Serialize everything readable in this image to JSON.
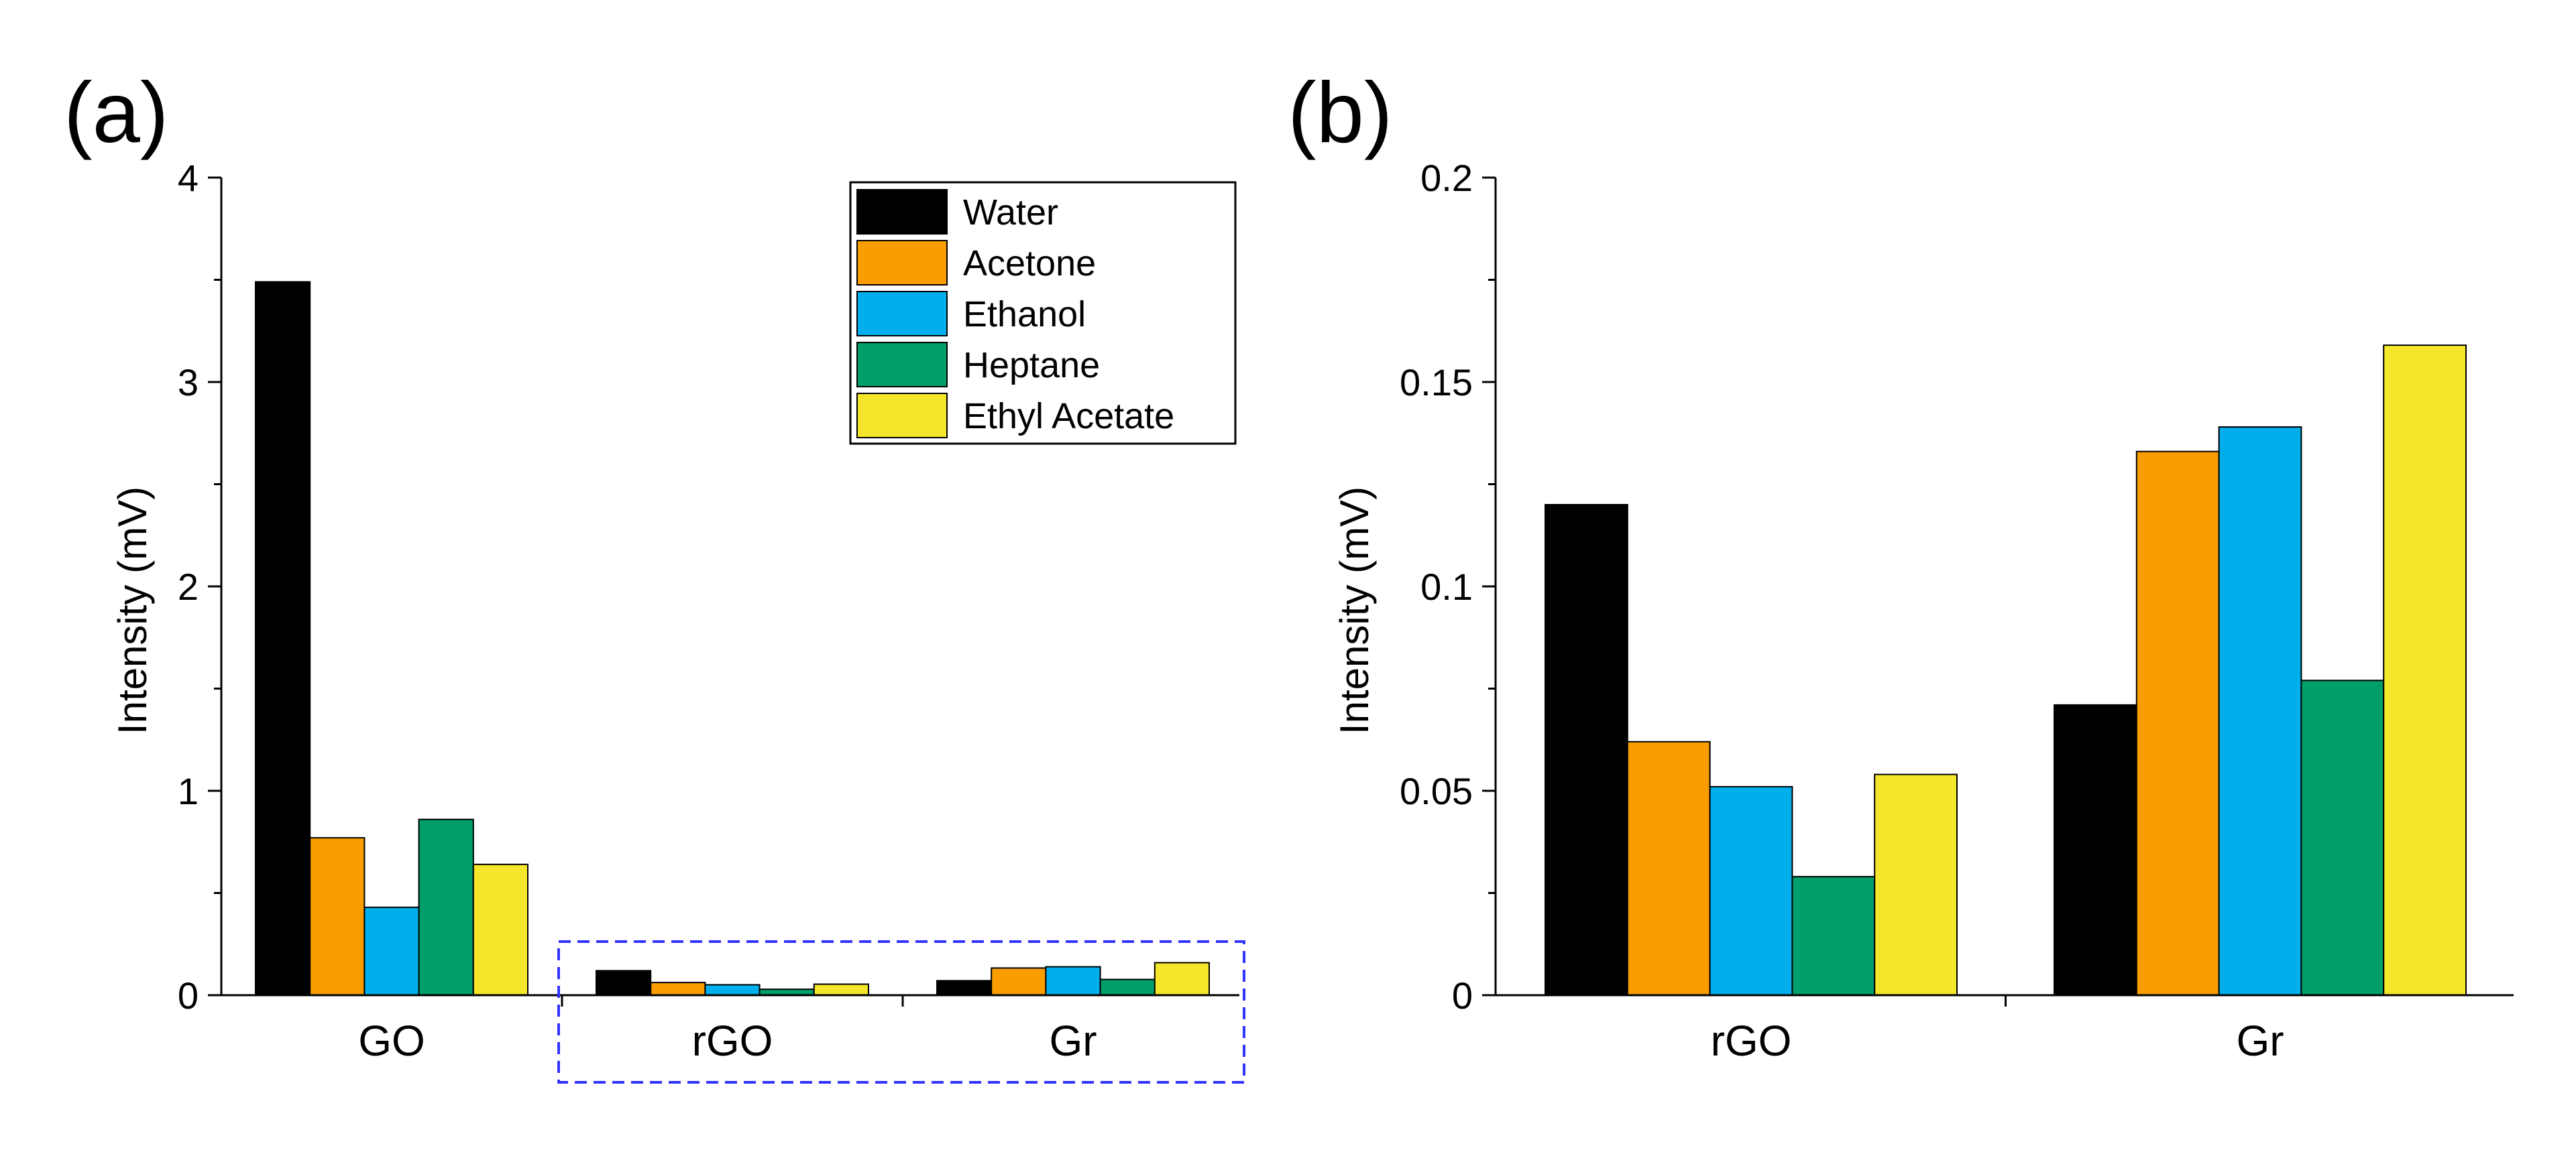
{
  "figure": {
    "panel_labels": [
      "(a)",
      "(b)"
    ]
  },
  "legend": {
    "entries": [
      {
        "label": "Water",
        "color": "#000000"
      },
      {
        "label": "Acetone",
        "color": "#F99D00"
      },
      {
        "label": "Ethanol",
        "color": "#00AEEB"
      },
      {
        "label": "Heptane",
        "color": "#009E6B"
      },
      {
        "label": "Ethyl Acetate",
        "color": "#F4E62A"
      }
    ],
    "placement": "top-right of panel (a)"
  },
  "highlight_box": {
    "color": "#3333FF",
    "style": "dashed",
    "encloses": [
      "rGO",
      "Gr"
    ]
  },
  "chart_data": [
    {
      "type": "bar",
      "panel": "(a)",
      "title": "",
      "xlabel": "",
      "ylabel": "Intensity (mV)",
      "ylim": [
        0,
        4
      ],
      "yticks": [
        "0",
        "1",
        "2",
        "3",
        "4"
      ],
      "categories": [
        "GO",
        "rGO",
        "Gr"
      ],
      "series": [
        {
          "name": "Water",
          "color": "#000000",
          "values": [
            3.49,
            0.12,
            0.071
          ]
        },
        {
          "name": "Acetone",
          "color": "#F99D00",
          "values": [
            0.77,
            0.062,
            0.133
          ]
        },
        {
          "name": "Ethanol",
          "color": "#00AEEB",
          "values": [
            0.43,
            0.051,
            0.139
          ]
        },
        {
          "name": "Heptane",
          "color": "#009E6B",
          "values": [
            0.86,
            0.029,
            0.077
          ]
        },
        {
          "name": "Ethyl Acetate",
          "color": "#F4E62A",
          "values": [
            0.64,
            0.054,
            0.159
          ]
        }
      ],
      "grid": false
    },
    {
      "type": "bar",
      "panel": "(b)",
      "title": "",
      "xlabel": "",
      "ylabel": "Intensity (mV)",
      "ylim": [
        0,
        0.2
      ],
      "yticks": [
        "0",
        "0.05",
        "0.1",
        "0.15",
        "0.2"
      ],
      "categories": [
        "rGO",
        "Gr"
      ],
      "series": [
        {
          "name": "Water",
          "color": "#000000",
          "values": [
            0.12,
            0.071
          ]
        },
        {
          "name": "Acetone",
          "color": "#F99D00",
          "values": [
            0.062,
            0.133
          ]
        },
        {
          "name": "Ethanol",
          "color": "#00AEEB",
          "values": [
            0.051,
            0.139
          ]
        },
        {
          "name": "Heptane",
          "color": "#009E6B",
          "values": [
            0.029,
            0.077
          ]
        },
        {
          "name": "Ethyl Acetate",
          "color": "#F4E62A",
          "values": [
            0.054,
            0.159
          ]
        }
      ],
      "grid": false
    }
  ]
}
